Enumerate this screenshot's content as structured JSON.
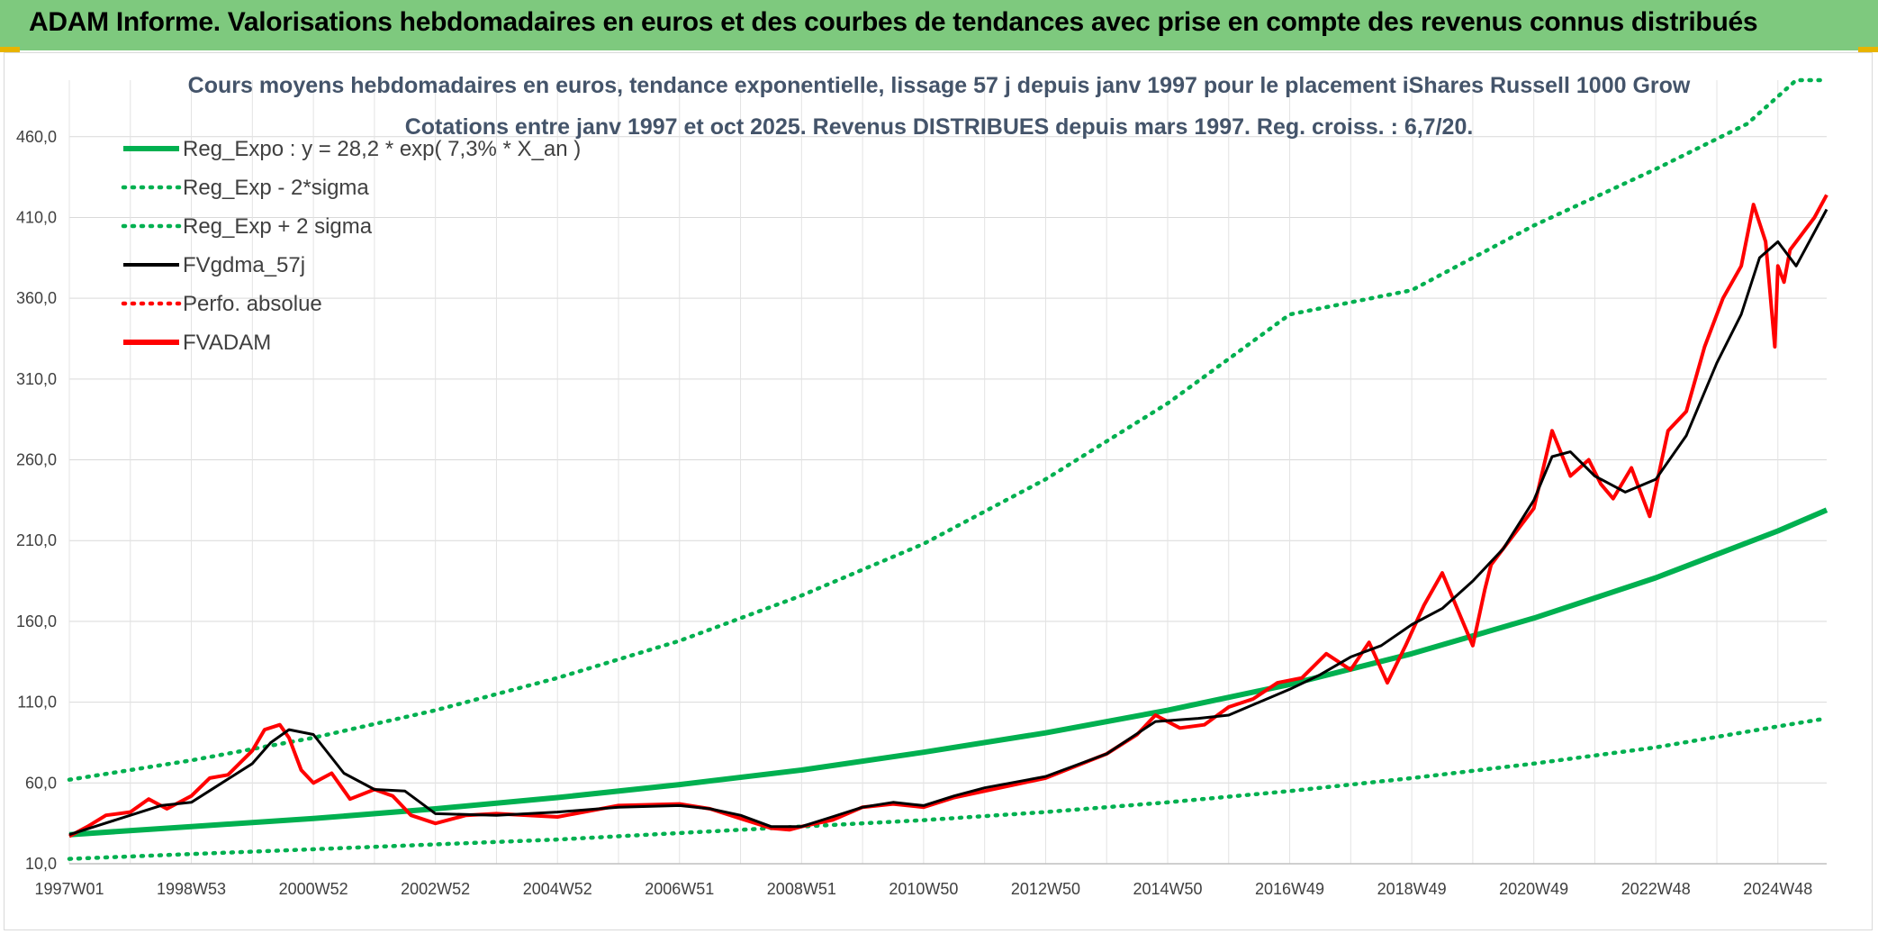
{
  "banner": {
    "title": "ADAM Informe. Valorisations hebdomadaires en euros et des courbes de tendances avec prise en compte des revenus connus distribués"
  },
  "chart_data": {
    "type": "line",
    "title_line1": "Cours moyens hebdomadaires en euros, tendance exponentielle, lissage 57 j depuis janv 1997 pour le placement iShares Russell 1000 Grow",
    "title_line2": "Cotations entre janv 1997 et oct 2025. Revenus DISTRIBUES depuis mars 1997. Reg. croiss. : 6,7/20.",
    "x_range": [
      1997.0,
      2025.8
    ],
    "ylim": [
      10,
      495
    ],
    "y_ticks": [
      10,
      60,
      110,
      160,
      210,
      260,
      310,
      360,
      410,
      460
    ],
    "y_tick_labels": [
      "10,0",
      "60,0",
      "110,0",
      "160,0",
      "210,0",
      "260,0",
      "310,0",
      "360,0",
      "410,0",
      "460,0"
    ],
    "x_tick_years": [
      1997.0,
      1999.0,
      2001.0,
      2003.0,
      2005.0,
      2007.0,
      2009.0,
      2011.0,
      2013.0,
      2015.0,
      2017.0,
      2019.0,
      2021.0,
      2023.0,
      2025.0
    ],
    "x_tick_labels": [
      "1997W01",
      "1998W53",
      "2000W52",
      "2002W52",
      "2004W52",
      "2006W51",
      "2008W51",
      "2010W50",
      "2012W50",
      "2014W50",
      "2016W49",
      "2018W49",
      "2020W49",
      "2022W48",
      "2024W48"
    ],
    "grid": true,
    "legend_position": "top-left",
    "legend": [
      {
        "label": "Reg_Expo : y = 28,2 * exp( 7,3% *  X_an )",
        "color": "#00b050",
        "style": "solid-thick"
      },
      {
        "label": "Reg_Exp - 2*sigma",
        "color": "#00b050",
        "style": "dotted"
      },
      {
        "label": "Reg_Exp + 2 sigma",
        "color": "#00b050",
        "style": "dotted"
      },
      {
        "label": "FVgdma_57j",
        "color": "#000000",
        "style": "solid"
      },
      {
        "label": "Perfo. absolue",
        "color": "#ff0000",
        "style": "dotted"
      },
      {
        "label": "FVADAM",
        "color": "#ff0000",
        "style": "solid-thick"
      }
    ],
    "series": [
      {
        "name": "Reg_Expo",
        "color": "#00b050",
        "style": "solid-thick",
        "x": [
          1997.0,
          1999.0,
          2001.0,
          2003.0,
          2005.0,
          2007.0,
          2009.0,
          2011.0,
          2013.0,
          2015.0,
          2017.0,
          2019.0,
          2021.0,
          2023.0,
          2025.0,
          2025.8
        ],
        "values": [
          28,
          33,
          38,
          44,
          51,
          59,
          68,
          79,
          91,
          105,
          121,
          140,
          162,
          187,
          216,
          229
        ]
      },
      {
        "name": "Reg_Exp - 2*sigma",
        "color": "#00b050",
        "style": "dotted",
        "x": [
          1997.0,
          1999.0,
          2001.0,
          2003.0,
          2005.0,
          2007.0,
          2009.0,
          2011.0,
          2013.0,
          2015.0,
          2017.0,
          2019.0,
          2021.0,
          2023.0,
          2025.0,
          2025.8
        ],
        "values": [
          13,
          16,
          19,
          22,
          25,
          29,
          33,
          37,
          42,
          48,
          55,
          63,
          72,
          82,
          95,
          100
        ]
      },
      {
        "name": "Reg_Exp + 2 sigma",
        "color": "#00b050",
        "style": "dotted",
        "x": [
          1997.0,
          1999.0,
          2001.0,
          2003.0,
          2005.0,
          2007.0,
          2009.0,
          2011.0,
          2013.0,
          2015.0,
          2017.0,
          2019.0,
          2021.0,
          2023.0,
          2024.5,
          2025.3,
          2025.8
        ],
        "values": [
          62,
          74,
          88,
          105,
          125,
          148,
          176,
          208,
          248,
          295,
          350,
          365,
          405,
          440,
          468,
          495,
          495
        ]
      },
      {
        "name": "FVgdma_57j",
        "color": "#000000",
        "style": "solid",
        "x": [
          1997.0,
          1997.5,
          1998.0,
          1998.5,
          1999.0,
          1999.5,
          2000.0,
          2000.3,
          2000.6,
          2001.0,
          2001.5,
          2002.0,
          2002.5,
          2003.0,
          2004.0,
          2005.0,
          2006.0,
          2007.0,
          2007.5,
          2008.0,
          2008.5,
          2009.0,
          2009.5,
          2010.0,
          2010.5,
          2011.0,
          2011.5,
          2012.0,
          2013.0,
          2014.0,
          2014.8,
          2015.5,
          2016.0,
          2016.5,
          2017.0,
          2017.5,
          2018.0,
          2018.5,
          2019.0,
          2019.5,
          2020.0,
          2020.5,
          2021.0,
          2021.3,
          2021.6,
          2022.0,
          2022.5,
          2023.0,
          2023.5,
          2024.0,
          2024.4,
          2024.7,
          2025.0,
          2025.3,
          2025.8
        ],
        "values": [
          28,
          34,
          40,
          46,
          48,
          60,
          72,
          85,
          93,
          90,
          66,
          56,
          55,
          41,
          40,
          42,
          45,
          46,
          44,
          40,
          33,
          33,
          39,
          45,
          48,
          46,
          52,
          57,
          64,
          78,
          98,
          100,
          102,
          110,
          118,
          127,
          138,
          145,
          158,
          168,
          185,
          205,
          235,
          262,
          265,
          250,
          240,
          248,
          275,
          320,
          350,
          385,
          395,
          380,
          415
        ]
      },
      {
        "name": "FVADAM",
        "color": "#ff0000",
        "style": "solid-thick",
        "x": [
          1997.0,
          1997.3,
          1997.6,
          1998.0,
          1998.3,
          1998.6,
          1999.0,
          1999.3,
          1999.6,
          2000.0,
          2000.2,
          2000.45,
          2000.6,
          2000.8,
          2001.0,
          2001.3,
          2001.6,
          2002.0,
          2002.3,
          2002.6,
          2003.0,
          2003.5,
          2004.0,
          2005.0,
          2006.0,
          2007.0,
          2007.5,
          2008.0,
          2008.5,
          2008.8,
          2009.0,
          2009.5,
          2010.0,
          2010.5,
          2011.0,
          2011.5,
          2012.0,
          2013.0,
          2014.0,
          2014.5,
          2014.8,
          2015.2,
          2015.6,
          2016.0,
          2016.4,
          2016.8,
          2017.2,
          2017.6,
          2018.0,
          2018.3,
          2018.6,
          2018.9,
          2019.2,
          2019.5,
          2020.0,
          2020.2,
          2020.3,
          2020.7,
          2021.0,
          2021.3,
          2021.6,
          2021.9,
          2022.1,
          2022.3,
          2022.6,
          2022.9,
          2023.2,
          2023.5,
          2023.8,
          2024.1,
          2024.4,
          2024.6,
          2024.8,
          2024.95,
          2025.0,
          2025.1,
          2025.2,
          2025.4,
          2025.6,
          2025.8
        ],
        "values": [
          27,
          33,
          40,
          42,
          50,
          44,
          52,
          63,
          65,
          80,
          93,
          96,
          88,
          68,
          60,
          66,
          50,
          56,
          52,
          40,
          35,
          40,
          41,
          39,
          46,
          47,
          44,
          38,
          32,
          31,
          33,
          37,
          45,
          47,
          45,
          51,
          55,
          63,
          78,
          90,
          102,
          94,
          96,
          107,
          112,
          122,
          125,
          140,
          130,
          147,
          122,
          145,
          170,
          190,
          145,
          180,
          195,
          215,
          230,
          278,
          250,
          260,
          245,
          236,
          255,
          225,
          278,
          290,
          330,
          360,
          380,
          418,
          395,
          330,
          380,
          370,
          390,
          400,
          410,
          424
        ]
      }
    ]
  }
}
